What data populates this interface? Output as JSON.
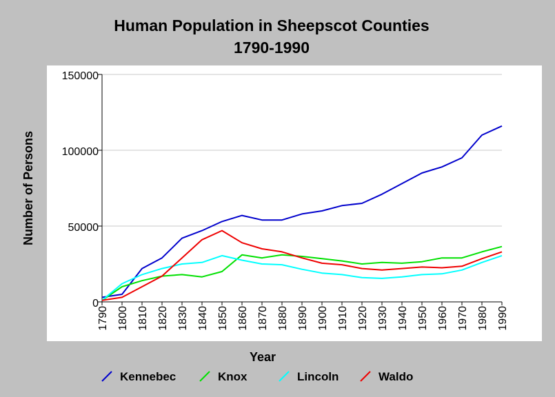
{
  "chart_data": {
    "type": "line",
    "title": "Human Population in Sheepscot Counties",
    "subtitle": "1790-1990",
    "xlabel": "Year",
    "ylabel": "Number of Persons",
    "x": [
      1790,
      1800,
      1810,
      1820,
      1830,
      1840,
      1850,
      1860,
      1870,
      1880,
      1890,
      1900,
      1910,
      1920,
      1930,
      1940,
      1950,
      1960,
      1970,
      1980,
      1990
    ],
    "x_tick_labels": [
      "1790",
      "1800",
      "1810",
      "1820",
      "1830",
      "1840",
      "1850",
      "1860",
      "1870",
      "1880",
      "1890",
      "1900",
      "1910",
      "1920",
      "1930",
      "1940",
      "1950",
      "1960",
      "1970",
      "1980",
      "1990"
    ],
    "ylim": [
      0,
      150000
    ],
    "y_ticks": [
      0,
      50000,
      100000,
      150000
    ],
    "y_tick_labels": [
      "0",
      "50000",
      "100000",
      "150000"
    ],
    "grid": true,
    "legend_position": "bottom",
    "series": [
      {
        "name": "Kennebec",
        "color": "#0000cc",
        "values": [
          3000,
          5000,
          22000,
          29000,
          42000,
          47000,
          53000,
          57000,
          54000,
          54000,
          58000,
          60000,
          63500,
          65000,
          71000,
          78000,
          85000,
          89000,
          95000,
          110000,
          116000
        ]
      },
      {
        "name": "Knox",
        "color": "#00e000",
        "values": [
          1000,
          10000,
          14000,
          17000,
          18000,
          16500,
          20000,
          31000,
          29000,
          31000,
          30000,
          28500,
          27000,
          25000,
          26000,
          25500,
          26500,
          29000,
          29000,
          33000,
          36500
        ]
      },
      {
        "name": "Lincoln",
        "color": "#00ffff",
        "values": [
          1000,
          12000,
          18000,
          22000,
          25000,
          26000,
          30500,
          27500,
          25000,
          24500,
          21500,
          19000,
          18000,
          16000,
          15500,
          16500,
          18000,
          18500,
          21000,
          26000,
          30500
        ]
      },
      {
        "name": "Waldo",
        "color": "#ee0000",
        "values": [
          1000,
          3000,
          10000,
          17000,
          29000,
          41000,
          47000,
          39000,
          35000,
          33000,
          29000,
          25500,
          24500,
          22000,
          21000,
          22000,
          23000,
          22500,
          23500,
          28500,
          33000
        ]
      }
    ]
  }
}
